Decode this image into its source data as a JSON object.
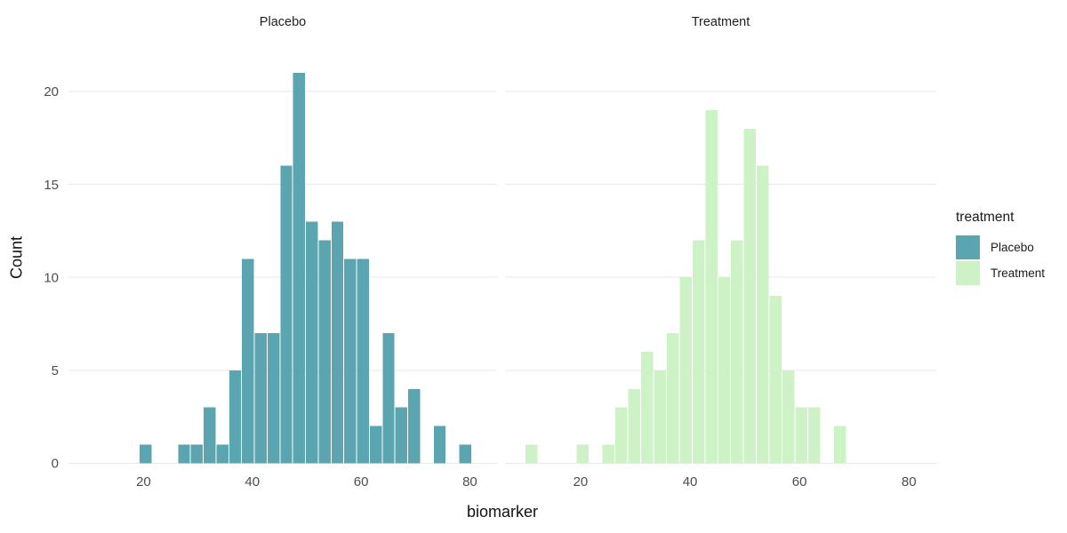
{
  "chart_data": {
    "type": "bar",
    "subtype": "faceted_histogram",
    "title": "",
    "xlabel": "biomarker",
    "ylabel": "Count",
    "x_ticks": [
      20,
      40,
      60,
      80
    ],
    "y_ticks": [
      0,
      5,
      10,
      15,
      20
    ],
    "xlim": [
      6.2,
      85
    ],
    "ylim": [
      0,
      22.05
    ],
    "binwidth": 2.35,
    "grid": "horizontal major gridlines only, light gray on white",
    "legend_position": "right",
    "facets": [
      {
        "name": "Placebo",
        "color": "#5aa5b0",
        "bins": [
          {
            "x": 20.4,
            "count": 1
          },
          {
            "x": 27.45,
            "count": 1
          },
          {
            "x": 29.8,
            "count": 1
          },
          {
            "x": 32.15,
            "count": 3
          },
          {
            "x": 34.5,
            "count": 1
          },
          {
            "x": 36.85,
            "count": 5
          },
          {
            "x": 39.2,
            "count": 11
          },
          {
            "x": 41.55,
            "count": 7
          },
          {
            "x": 43.9,
            "count": 7
          },
          {
            "x": 46.25,
            "count": 16
          },
          {
            "x": 48.6,
            "count": 21
          },
          {
            "x": 50.95,
            "count": 13
          },
          {
            "x": 53.3,
            "count": 12
          },
          {
            "x": 55.65,
            "count": 13
          },
          {
            "x": 58.0,
            "count": 11
          },
          {
            "x": 60.35,
            "count": 11
          },
          {
            "x": 62.7,
            "count": 2
          },
          {
            "x": 65.05,
            "count": 7
          },
          {
            "x": 67.4,
            "count": 3
          },
          {
            "x": 69.75,
            "count": 4
          },
          {
            "x": 74.45,
            "count": 2
          },
          {
            "x": 79.15,
            "count": 1
          }
        ]
      },
      {
        "name": "Treatment",
        "color": "#cdf2c6",
        "bins": [
          {
            "x": 11.0,
            "count": 1
          },
          {
            "x": 20.4,
            "count": 1
          },
          {
            "x": 25.1,
            "count": 1
          },
          {
            "x": 27.45,
            "count": 3
          },
          {
            "x": 29.8,
            "count": 4
          },
          {
            "x": 32.15,
            "count": 6
          },
          {
            "x": 34.5,
            "count": 5
          },
          {
            "x": 36.85,
            "count": 7
          },
          {
            "x": 39.2,
            "count": 10
          },
          {
            "x": 41.55,
            "count": 12
          },
          {
            "x": 43.9,
            "count": 19
          },
          {
            "x": 46.25,
            "count": 10
          },
          {
            "x": 48.6,
            "count": 12
          },
          {
            "x": 50.95,
            "count": 18
          },
          {
            "x": 53.3,
            "count": 16
          },
          {
            "x": 55.65,
            "count": 9
          },
          {
            "x": 58.0,
            "count": 5
          },
          {
            "x": 60.35,
            "count": 3
          },
          {
            "x": 62.7,
            "count": 3
          },
          {
            "x": 67.4,
            "count": 2
          }
        ]
      }
    ]
  },
  "legend": {
    "title": "treatment",
    "entries": [
      {
        "label": "Placebo",
        "color": "#5aa5b0"
      },
      {
        "label": "Treatment",
        "color": "#cdf2c6"
      }
    ]
  },
  "colors": {
    "background": "#ffffff",
    "gridline": "#e9e9e9",
    "tick_text": "#4d4d4d",
    "title_text": "#111111"
  }
}
